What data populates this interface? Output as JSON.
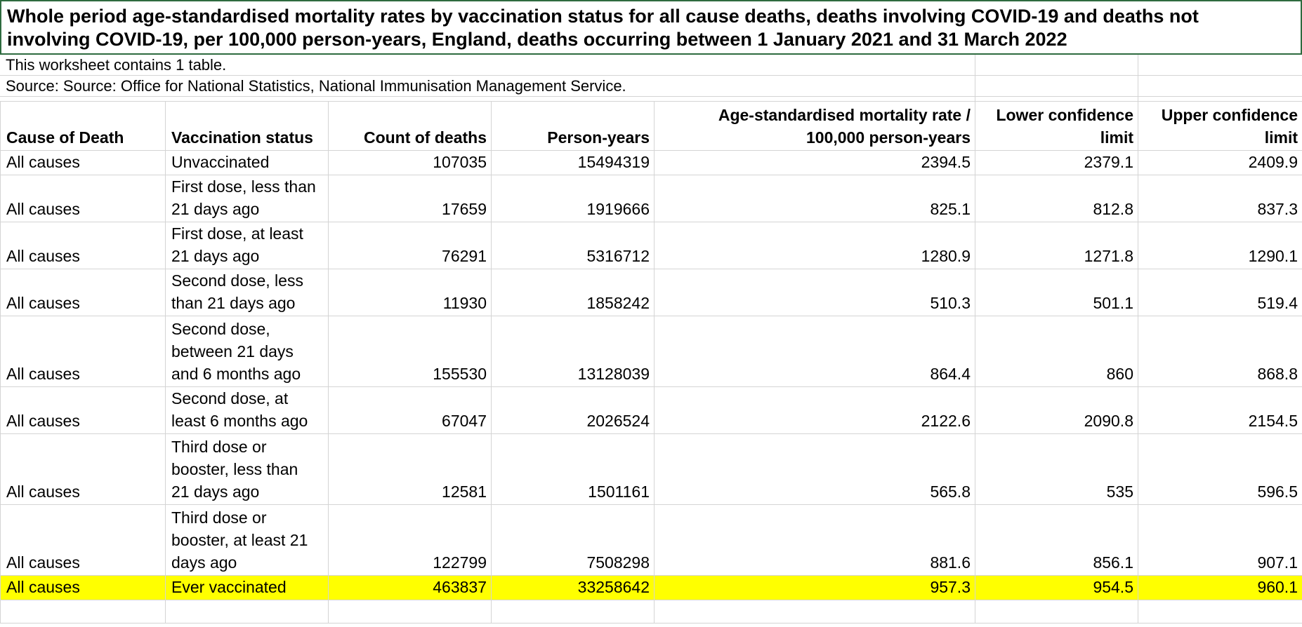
{
  "sheet": {
    "title_line1": "Whole period age-standardised mortality rates by vaccination status for all cause deaths, deaths involving COVID-19 and deaths not",
    "title_line2": "involving COVID-19, per 100,000 person-years, England, deaths occurring between 1 January 2021 and 31 March 2022",
    "info": "This worksheet contains 1 table.",
    "source": "Source: Source: Office for National Statistics, National Immunisation Management Service."
  },
  "table": {
    "headers": {
      "cause": "Cause of Death",
      "status": "Vaccination status",
      "count": "Count of deaths",
      "person_years": "Person-years",
      "rate_line1": "Age-standardised mortality rate /",
      "rate_line2": "100,000 person-years",
      "lower_line1": "Lower confidence",
      "lower_line2": "limit",
      "upper_line1": "Upper confidence",
      "upper_line2": "limit"
    },
    "rows": [
      {
        "cause": "All causes",
        "status": [
          "Unvaccinated"
        ],
        "count": "107035",
        "py": "15494319",
        "rate": "2394.5",
        "lower": "2379.1",
        "upper": "2409.9"
      },
      {
        "cause": "All causes",
        "status": [
          "First dose, less than",
          "21 days ago"
        ],
        "count": "17659",
        "py": "1919666",
        "rate": "825.1",
        "lower": "812.8",
        "upper": "837.3"
      },
      {
        "cause": "All causes",
        "status": [
          "First dose, at least",
          "21 days ago"
        ],
        "count": "76291",
        "py": "5316712",
        "rate": "1280.9",
        "lower": "1271.8",
        "upper": "1290.1"
      },
      {
        "cause": "All causes",
        "status": [
          "Second dose, less",
          "than 21 days ago"
        ],
        "count": "11930",
        "py": "1858242",
        "rate": "510.3",
        "lower": "501.1",
        "upper": "519.4"
      },
      {
        "cause": "All causes",
        "status": [
          "Second dose,",
          "between 21 days",
          "and 6 months ago"
        ],
        "count": "155530",
        "py": "13128039",
        "rate": "864.4",
        "lower": "860",
        "upper": "868.8"
      },
      {
        "cause": "All causes",
        "status": [
          "Second dose, at",
          "least 6 months ago"
        ],
        "count": "67047",
        "py": "2026524",
        "rate": "2122.6",
        "lower": "2090.8",
        "upper": "2154.5"
      },
      {
        "cause": "All causes",
        "status": [
          "Third dose or",
          "booster, less than",
          "21 days ago"
        ],
        "count": "12581",
        "py": "1501161",
        "rate": "565.8",
        "lower": "535",
        "upper": "596.5"
      },
      {
        "cause": "All causes",
        "status": [
          "Third dose or",
          "booster, at least 21",
          "days ago"
        ],
        "count": "122799",
        "py": "7508298",
        "rate": "881.6",
        "lower": "856.1",
        "upper": "907.1"
      },
      {
        "cause": "All causes",
        "status": [
          "Ever vaccinated"
        ],
        "count": "463837",
        "py": "33258642",
        "rate": "957.3",
        "lower": "954.5",
        "upper": "960.1",
        "highlight": true
      }
    ]
  },
  "colors": {
    "highlight": "#ffff00",
    "selection_border": "#2e6b3f",
    "gridline": "#d4d4d4"
  }
}
